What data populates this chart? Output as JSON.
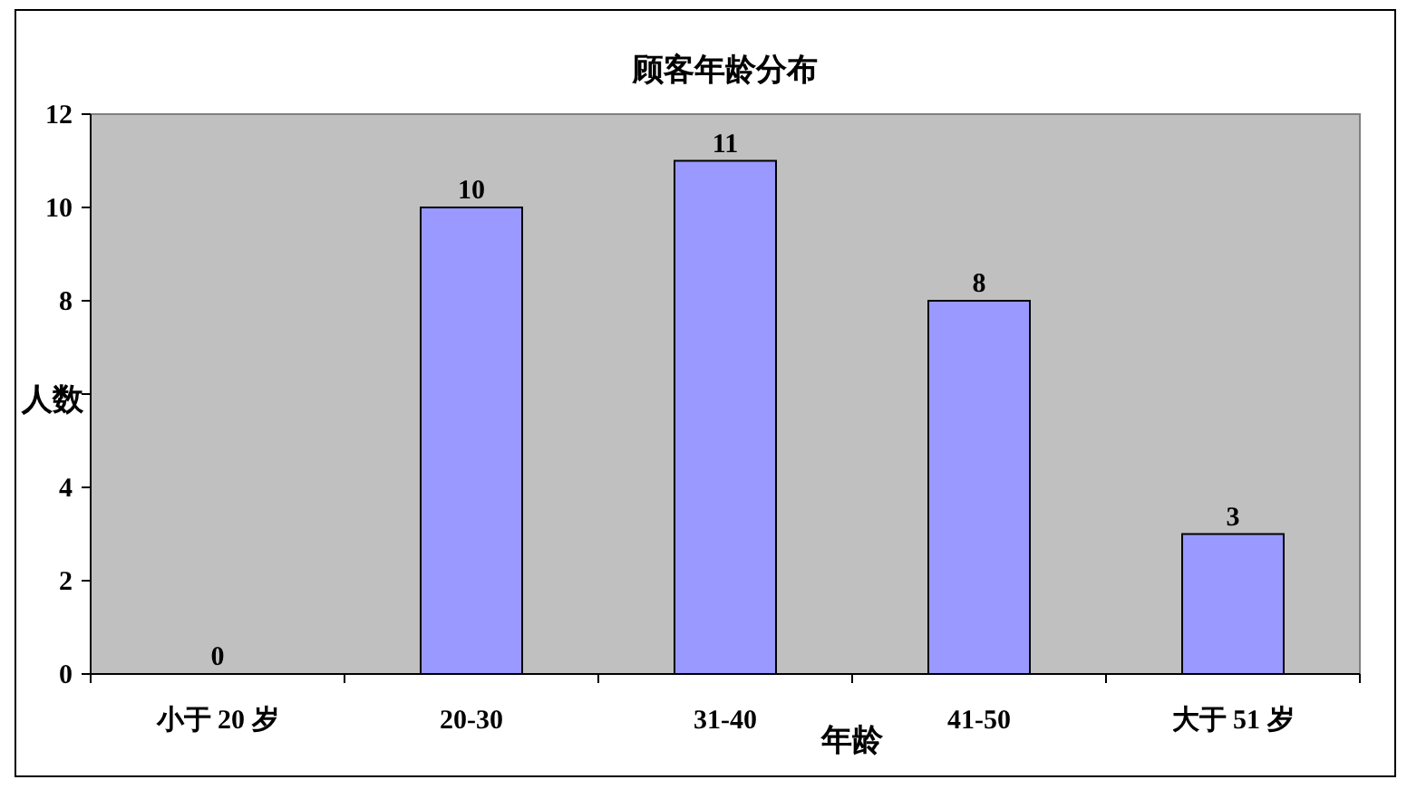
{
  "chart_data": {
    "type": "bar",
    "title": "顾客年龄分布",
    "xlabel": "年龄",
    "ylabel": "人数",
    "categories": [
      "小于 20 岁",
      "20-30",
      "31-40",
      "41-50",
      "大于 51 岁"
    ],
    "values": [
      0,
      10,
      11,
      8,
      3
    ],
    "color": "#9999ff",
    "ylim": [
      0,
      12
    ],
    "yticks": [
      0,
      2,
      4,
      {
        "value": 6,
        "label": null
      },
      8,
      10,
      12
    ],
    "data_labels": true
  }
}
